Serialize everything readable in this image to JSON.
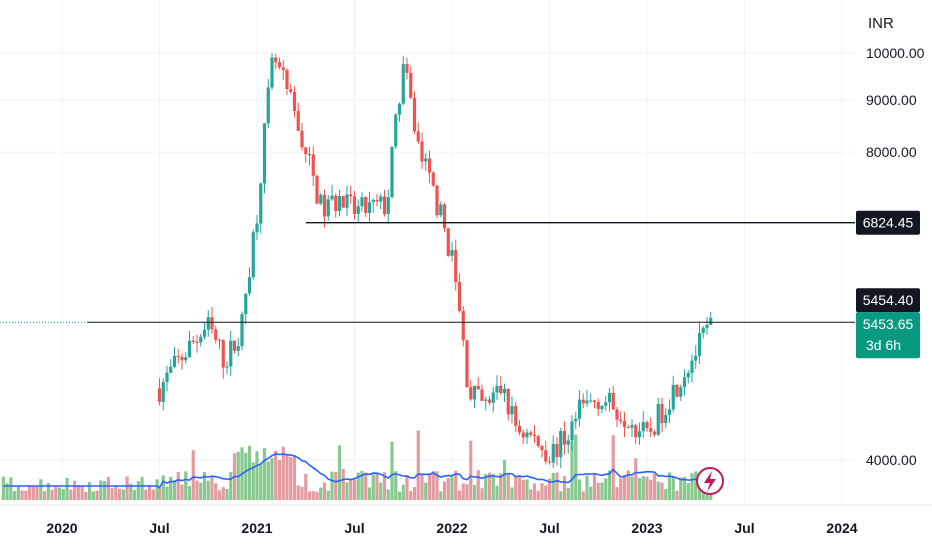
{
  "currency": "INR",
  "colors": {
    "up": "#26a69a",
    "down": "#ef5350",
    "volume_up": "#86c98e",
    "volume_down": "#e39ba0",
    "ma_line": "#2962ff",
    "last_price_bg": "#089981",
    "level_bg": "#131722",
    "lightning": "#c2185b"
  },
  "chart_data": {
    "type": "candlestick",
    "y_axis": {
      "scale": "log",
      "ticks": [
        "10000.00",
        "9000.00",
        "8000.00",
        "4000.00"
      ],
      "range": [
        3400,
        11000
      ]
    },
    "x_axis": {
      "ticks": [
        "2020",
        "Jul",
        "2021",
        "Jul",
        "2022",
        "Jul",
        "2023",
        "Jul",
        "2024"
      ]
    },
    "price_levels": [
      {
        "label": "6824.45",
        "value": 6824.45
      },
      {
        "label": "5454.40",
        "value": 5454.4
      }
    ],
    "last_price": {
      "label": "5453.65",
      "countdown": "3d 6h",
      "value": 5453.65
    },
    "series": [
      {
        "name": "price",
        "close_path": [
          [
            "2020-07",
            4700
          ],
          [
            "2020-09",
            5200
          ],
          [
            "2020-10",
            5400
          ],
          [
            "2020-11",
            5000
          ],
          [
            "2020-12",
            5300
          ],
          [
            "2021-01",
            7000
          ],
          [
            "2021-02",
            9900
          ],
          [
            "2021-03",
            9000
          ],
          [
            "2021-04",
            8000
          ],
          [
            "2021-05",
            7000
          ],
          [
            "2021-06",
            7200
          ],
          [
            "2021-07",
            7000
          ],
          [
            "2021-09",
            7100
          ],
          [
            "2021-10",
            9700
          ],
          [
            "2021-11",
            8000
          ],
          [
            "2021-12",
            7200
          ],
          [
            "2022-01",
            6300
          ],
          [
            "2022-02",
            4700
          ],
          [
            "2022-03",
            4500
          ],
          [
            "2022-04",
            4700
          ],
          [
            "2022-05",
            4300
          ],
          [
            "2022-06",
            4200
          ],
          [
            "2022-07",
            4050
          ],
          [
            "2022-08",
            4200
          ],
          [
            "2022-09",
            4500
          ],
          [
            "2022-10",
            4600
          ],
          [
            "2022-11",
            4500
          ],
          [
            "2022-12",
            4400
          ],
          [
            "2023-01",
            4200
          ],
          [
            "2023-02",
            4500
          ],
          [
            "2023-03",
            4800
          ],
          [
            "2023-04",
            5100
          ],
          [
            "2023-05",
            5450
          ]
        ]
      }
    ]
  }
}
